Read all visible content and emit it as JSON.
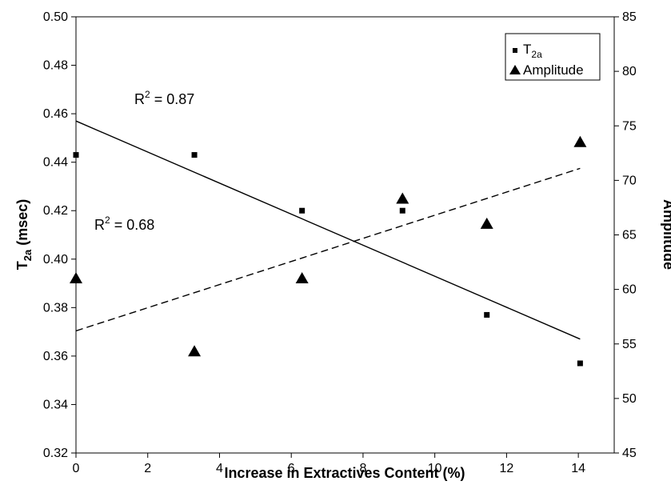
{
  "chart_data": {
    "type": "scatter",
    "x": [
      0,
      3.3,
      6.3,
      9.1,
      11.45,
      14.05
    ],
    "series": [
      {
        "name_main": "T",
        "name_sub": "2a",
        "axis": "left",
        "marker": "square",
        "values": [
          0.443,
          0.443,
          0.42,
          0.42,
          0.377,
          0.357
        ],
        "trendline": {
          "style": "solid",
          "x": [
            0,
            14.05
          ],
          "y": [
            0.457,
            0.367
          ]
        },
        "r2_label_main": "R",
        "r2_label_sup": "2",
        "r2_label_rest": " = 0.87"
      },
      {
        "name": "Amplitude",
        "axis": "right",
        "marker": "triangle",
        "values": [
          61,
          54.3,
          61,
          68.3,
          66,
          73.5
        ],
        "trendline": {
          "style": "dashed",
          "x": [
            0,
            14.05
          ],
          "y": [
            56.2,
            71.1
          ]
        },
        "r2_label_main": "R",
        "r2_label_sup": "2",
        "r2_label_rest": " = 0.68"
      }
    ],
    "xlabel": "Increase in Extractives Content (%)",
    "ylabel_left_main": "T",
    "ylabel_left_sub": "2a",
    "ylabel_left_rest": " (msec)",
    "ylabel_right": "Amplitude",
    "xlim": [
      0,
      15
    ],
    "ylim_left": [
      0.32,
      0.5
    ],
    "ylim_right": [
      45,
      85
    ],
    "xticks": [
      "0",
      "2",
      "4",
      "6",
      "8",
      "10",
      "12",
      "14"
    ],
    "yticks_left": [
      "0.32",
      "0.34",
      "0.36",
      "0.38",
      "0.40",
      "0.42",
      "0.44",
      "0.46",
      "0.48",
      "0.50"
    ],
    "yticks_right": [
      "45",
      "50",
      "55",
      "60",
      "65",
      "70",
      "75",
      "80",
      "85"
    ],
    "grid": false,
    "legend_position": "top-right"
  }
}
